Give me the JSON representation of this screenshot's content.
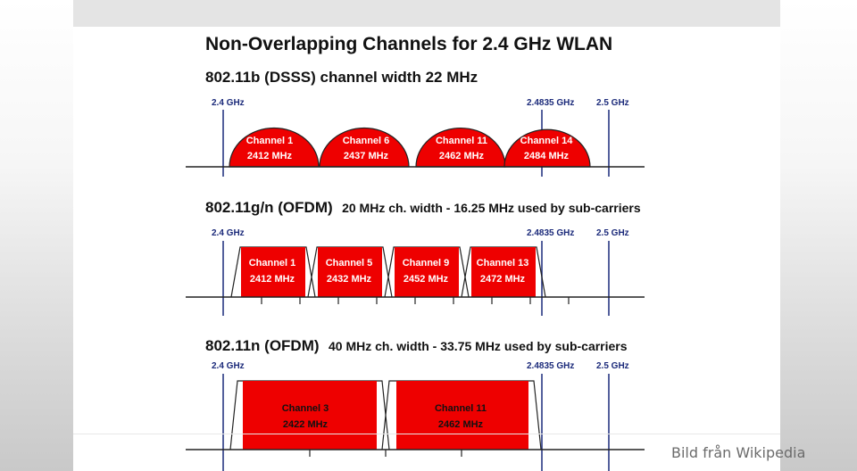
{
  "title": "Non-Overlapping Channels for 2.4 GHz WLAN",
  "credit": "Bild från Wikipedia",
  "colors": {
    "band": "#ee0000",
    "marker": "#1b2a7a",
    "axis": "#222222"
  },
  "panels": [
    {
      "heading_main": "802.11b (DSSS) channel width 22 MHz",
      "heading_sub": "",
      "markers": [
        "2.4 GHz",
        "2.4835 GHz",
        "2.5 GHz"
      ],
      "channels": [
        {
          "name": "Channel 1",
          "freq": "2412 MHz"
        },
        {
          "name": "Channel 6",
          "freq": "2437 MHz"
        },
        {
          "name": "Channel 11",
          "freq": "2462 MHz"
        },
        {
          "name": "Channel 14",
          "freq": "2484 MHz"
        }
      ]
    },
    {
      "heading_main": "802.11g/n (OFDM)",
      "heading_sub": "20 MHz ch. width - 16.25 MHz used by sub-carriers",
      "markers": [
        "2.4 GHz",
        "2.4835 GHz",
        "2.5 GHz"
      ],
      "channels": [
        {
          "name": "Channel 1",
          "freq": "2412 MHz"
        },
        {
          "name": "Channel 5",
          "freq": "2432 MHz"
        },
        {
          "name": "Channel 9",
          "freq": "2452 MHz"
        },
        {
          "name": "Channel 13",
          "freq": "2472 MHz"
        }
      ]
    },
    {
      "heading_main": "802.11n (OFDM)",
      "heading_sub": "40 MHz ch. width - 33.75 MHz used by sub-carriers",
      "markers": [
        "2.4 GHz",
        "2.4835 GHz",
        "2.5 GHz"
      ],
      "channels": [
        {
          "name": "Channel 3",
          "freq": "2422 MHz"
        },
        {
          "name": "Channel 11",
          "freq": "2462 MHz"
        }
      ]
    }
  ]
}
